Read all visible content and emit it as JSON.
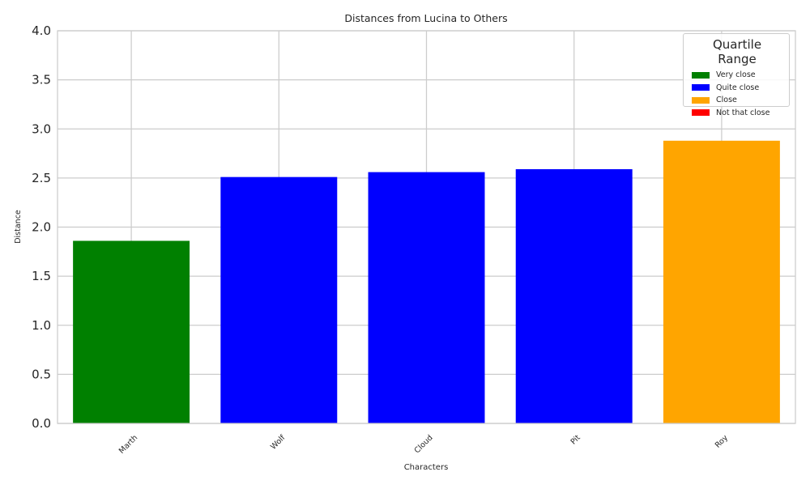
{
  "chart_data": {
    "type": "bar",
    "title": "Distances from Lucina to Others",
    "xlabel": "Characters",
    "ylabel": "Distance",
    "categories": [
      "Marth",
      "Wolf",
      "Cloud",
      "Pit",
      "Roy"
    ],
    "values": [
      1.86,
      2.51,
      2.56,
      2.59,
      2.88
    ],
    "bar_groups": [
      "Very close",
      "Quite close",
      "Quite close",
      "Quite close",
      "Close"
    ],
    "ylim": [
      0,
      4.0
    ],
    "yticks": [
      "0.0",
      "0.5",
      "1.0",
      "1.5",
      "2.0",
      "2.5",
      "3.0",
      "3.5",
      "4.0"
    ],
    "grid": true,
    "legend": {
      "title": "Quartile Range",
      "placement": "top-right",
      "entries": [
        {
          "label": "Very close",
          "color": "#008000"
        },
        {
          "label": "Quite close",
          "color": "#0000ff"
        },
        {
          "label": "Close",
          "color": "#ffa500"
        },
        {
          "label": "Not that close",
          "color": "#ff0000"
        }
      ]
    }
  }
}
